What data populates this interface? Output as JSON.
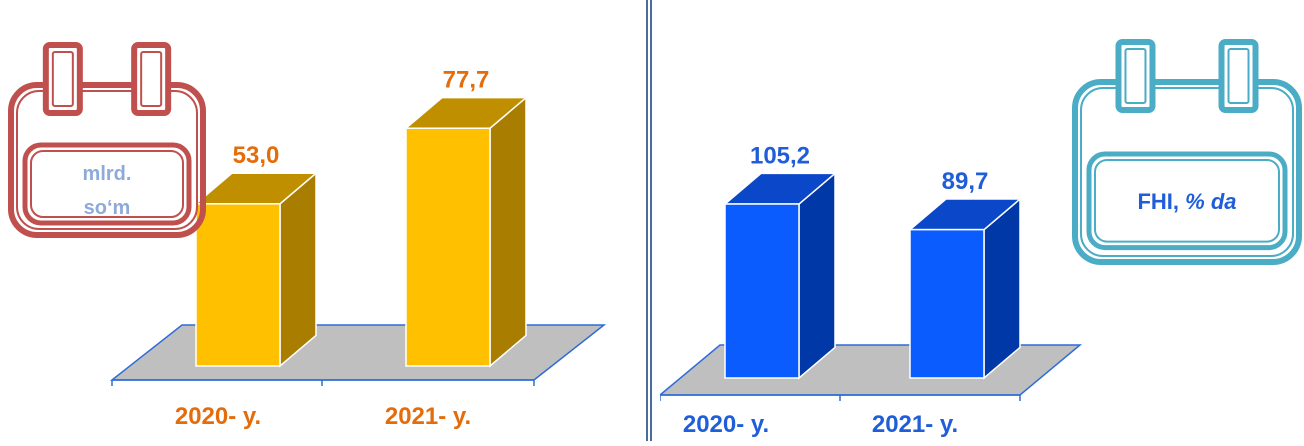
{
  "chart_data": [
    {
      "type": "bar",
      "categories": [
        "2020- y.",
        "2021- y."
      ],
      "values": [
        53.0,
        77.7
      ],
      "value_labels": [
        "53,0",
        "77,7"
      ],
      "unit_badge": [
        "mlrd.",
        "so‘m"
      ],
      "colors": {
        "front": "#ffc000",
        "side": "#a87d00",
        "top": "#bf8f00",
        "labels": "#e46c0a",
        "unit_text": "#8eaadb",
        "badge": "#c0504d"
      },
      "ylim": [
        0,
        100
      ],
      "grid": false
    },
    {
      "type": "bar",
      "categories": [
        "2020- y.",
        "2021- y."
      ],
      "values": [
        105.2,
        89.7
      ],
      "value_labels": [
        "105,2",
        "89,7"
      ],
      "unit_badge": [
        "FHI,",
        "% da"
      ],
      "colors": {
        "front": "#0a5cff",
        "side": "#0038a8",
        "top": "#0a47c9",
        "labels": "#1f5ed8",
        "unit_text": "#1f5ed8",
        "badge": "#4bacc6"
      },
      "ylim": [
        0,
        130
      ],
      "grid": false
    }
  ]
}
